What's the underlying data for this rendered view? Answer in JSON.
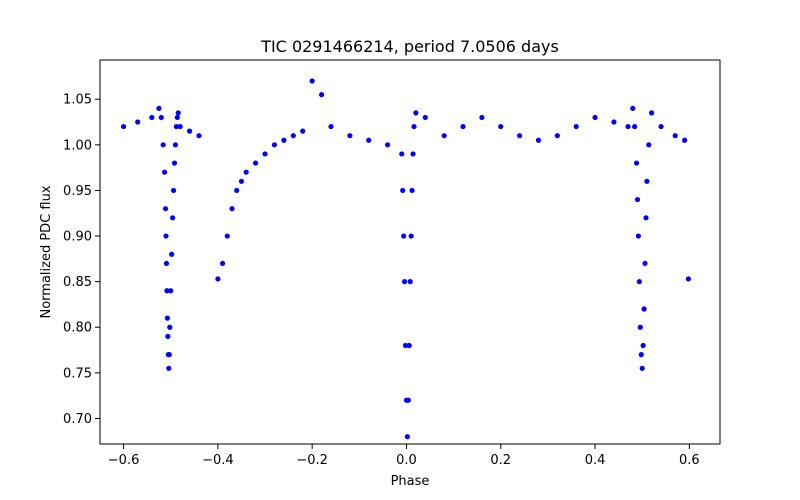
{
  "chart_data": {
    "type": "scatter",
    "title": "TIC 0291466214, period 7.0506 days",
    "xlabel": "Phase",
    "ylabel": "Normalized PDC flux",
    "xlim": [
      -0.65,
      0.665
    ],
    "ylim": [
      0.672,
      1.093
    ],
    "xticks": [
      -0.6,
      -0.4,
      -0.2,
      0.0,
      0.2,
      0.4,
      0.6
    ],
    "xtick_labels": [
      "−0.6",
      "−0.4",
      "−0.2",
      "0.0",
      "0.2",
      "0.4",
      "0.6"
    ],
    "yticks": [
      0.7,
      0.75,
      0.8,
      0.85,
      0.9,
      0.95,
      1.0,
      1.05
    ],
    "ytick_labels": [
      "0.70",
      "0.75",
      "0.80",
      "0.85",
      "0.90",
      "0.95",
      "1.00",
      "1.05"
    ],
    "grid": false,
    "color": "#0000ff",
    "series": [
      {
        "name": "",
        "x": [
          -0.6,
          -0.57,
          -0.54,
          -0.525,
          -0.52,
          -0.516,
          -0.513,
          -0.511,
          -0.51,
          -0.509,
          -0.508,
          -0.507,
          -0.506,
          -0.505,
          -0.504,
          -0.503,
          -0.502,
          -0.5,
          -0.498,
          -0.496,
          -0.494,
          -0.492,
          -0.49,
          -0.488,
          -0.486,
          -0.484,
          -0.48,
          -0.46,
          -0.44,
          -0.4,
          -0.39,
          -0.38,
          -0.37,
          -0.36,
          -0.35,
          -0.34,
          -0.32,
          -0.3,
          -0.28,
          -0.26,
          -0.24,
          -0.22,
          -0.2,
          -0.18,
          -0.16,
          -0.12,
          -0.08,
          -0.04,
          -0.01,
          -0.008,
          -0.006,
          -0.004,
          -0.002,
          0.0,
          0.002,
          0.004,
          0.006,
          0.008,
          0.01,
          0.012,
          0.014,
          0.016,
          0.02,
          0.04,
          0.08,
          0.12,
          0.16,
          0.2,
          0.24,
          0.28,
          0.32,
          0.36,
          0.4,
          0.44,
          0.47,
          0.48,
          0.484,
          0.488,
          0.49,
          0.492,
          0.494,
          0.496,
          0.498,
          0.5,
          0.502,
          0.504,
          0.506,
          0.508,
          0.51,
          0.514,
          0.52,
          0.54,
          0.57,
          0.59,
          0.598
        ],
        "y": [
          1.02,
          1.025,
          1.03,
          1.04,
          1.03,
          1.0,
          0.97,
          0.93,
          0.9,
          0.87,
          0.84,
          0.81,
          0.79,
          0.77,
          0.755,
          0.77,
          0.8,
          0.84,
          0.88,
          0.92,
          0.95,
          0.98,
          1.0,
          1.02,
          1.03,
          1.035,
          1.02,
          1.015,
          1.01,
          0.853,
          0.87,
          0.9,
          0.93,
          0.95,
          0.96,
          0.97,
          0.98,
          0.99,
          1.0,
          1.005,
          1.01,
          1.015,
          1.07,
          1.055,
          1.02,
          1.01,
          1.005,
          1.0,
          0.99,
          0.95,
          0.9,
          0.85,
          0.78,
          0.72,
          0.68,
          0.72,
          0.78,
          0.85,
          0.9,
          0.95,
          0.99,
          1.02,
          1.035,
          1.03,
          1.01,
          1.02,
          1.03,
          1.02,
          1.01,
          1.005,
          1.01,
          1.02,
          1.03,
          1.025,
          1.02,
          1.04,
          1.02,
          0.98,
          0.94,
          0.9,
          0.85,
          0.8,
          0.77,
          0.755,
          0.78,
          0.82,
          0.87,
          0.92,
          0.96,
          1.0,
          1.035,
          1.02,
          1.01,
          1.005,
          0.853
        ]
      }
    ]
  }
}
